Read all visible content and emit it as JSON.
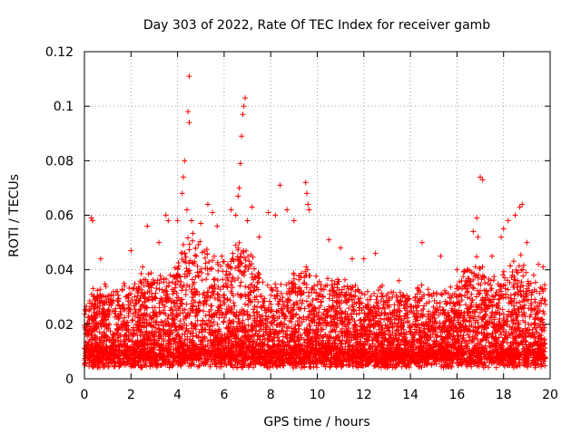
{
  "chart_data": {
    "type": "scatter",
    "title": "Day 303 of 2022, Rate Of TEC Index for receiver gamb",
    "xlabel": "GPS time / hours",
    "ylabel": "ROTI / TECUs",
    "xlim": [
      0,
      20
    ],
    "ylim": [
      0,
      0.12
    ],
    "x_ticks": [
      "0",
      "2",
      "4",
      "6",
      "8",
      "10",
      "12",
      "14",
      "16",
      "18",
      "20"
    ],
    "y_ticks": [
      "0",
      "0.02",
      "0.04",
      "0.06",
      "0.08",
      "0.1",
      "0.12"
    ],
    "grid": true,
    "marker": "+",
    "color": "#ff0000",
    "series": [
      {
        "name": "ROTI",
        "sampled": true,
        "outliers": [
          [
            0.3,
            0.059
          ],
          [
            0.35,
            0.058
          ],
          [
            0.7,
            0.044
          ],
          [
            1.7,
            0.035
          ],
          [
            2.0,
            0.047
          ],
          [
            2.5,
            0.041
          ],
          [
            2.7,
            0.056
          ],
          [
            3.2,
            0.05
          ],
          [
            3.5,
            0.06
          ],
          [
            3.6,
            0.058
          ],
          [
            4.0,
            0.058
          ],
          [
            4.2,
            0.068
          ],
          [
            4.25,
            0.074
          ],
          [
            4.3,
            0.08
          ],
          [
            4.4,
            0.062
          ],
          [
            4.45,
            0.098
          ],
          [
            4.5,
            0.094
          ],
          [
            4.5,
            0.111
          ],
          [
            4.6,
            0.058
          ],
          [
            5.0,
            0.057
          ],
          [
            5.3,
            0.064
          ],
          [
            5.5,
            0.061
          ],
          [
            5.7,
            0.056
          ],
          [
            6.0,
            0.043
          ],
          [
            6.3,
            0.062
          ],
          [
            6.5,
            0.06
          ],
          [
            6.6,
            0.067
          ],
          [
            6.65,
            0.07
          ],
          [
            6.7,
            0.079
          ],
          [
            6.75,
            0.089
          ],
          [
            6.8,
            0.097
          ],
          [
            6.85,
            0.1
          ],
          [
            6.9,
            0.103
          ],
          [
            7.0,
            0.058
          ],
          [
            7.2,
            0.063
          ],
          [
            7.5,
            0.052
          ],
          [
            7.9,
            0.061
          ],
          [
            8.2,
            0.06
          ],
          [
            8.4,
            0.071
          ],
          [
            8.7,
            0.062
          ],
          [
            9.0,
            0.058
          ],
          [
            9.5,
            0.072
          ],
          [
            9.55,
            0.068
          ],
          [
            9.6,
            0.064
          ],
          [
            9.65,
            0.062
          ],
          [
            10.5,
            0.051
          ],
          [
            11.0,
            0.048
          ],
          [
            11.5,
            0.044
          ],
          [
            12.0,
            0.044
          ],
          [
            12.5,
            0.046
          ],
          [
            13.5,
            0.036
          ],
          [
            14.5,
            0.05
          ],
          [
            15.3,
            0.045
          ],
          [
            16.0,
            0.04
          ],
          [
            16.7,
            0.054
          ],
          [
            16.85,
            0.059
          ],
          [
            16.9,
            0.052
          ],
          [
            17.0,
            0.074
          ],
          [
            17.1,
            0.073
          ],
          [
            17.5,
            0.045
          ],
          [
            17.9,
            0.052
          ],
          [
            18.0,
            0.055
          ],
          [
            18.2,
            0.058
          ],
          [
            18.5,
            0.06
          ],
          [
            18.7,
            0.063
          ],
          [
            18.8,
            0.064
          ],
          [
            19.0,
            0.05
          ],
          [
            19.5,
            0.042
          ],
          [
            19.7,
            0.041
          ]
        ]
      }
    ]
  }
}
